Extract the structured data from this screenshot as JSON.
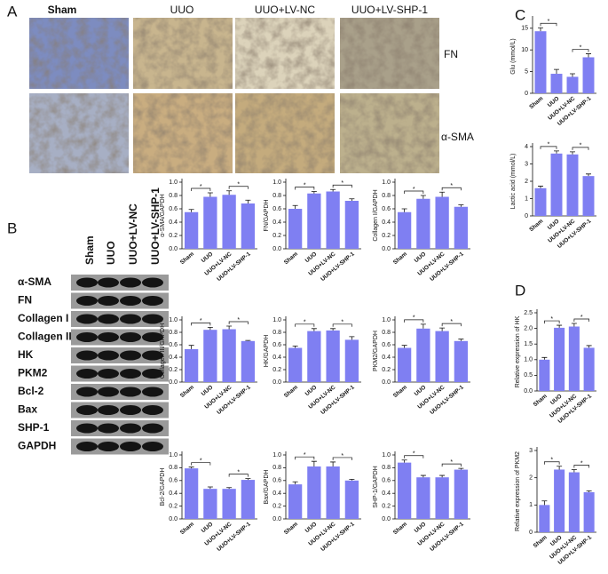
{
  "panel_labels": [
    "A",
    "B",
    "C",
    "D"
  ],
  "panel_a": {
    "columns": [
      "Sham",
      "UUO",
      "UUO+LV-NC",
      "UUO+LV-SHP-1"
    ],
    "rows": [
      "FN",
      "α-SMA"
    ]
  },
  "panel_b": {
    "lanes": [
      "Sham",
      "UUO",
      "UUO+LV-NC",
      "UUO+LV-SHP-1"
    ],
    "proteins": [
      "α-SMA",
      "FN",
      "Collagen I",
      "Collagen III",
      "HK",
      "PKM2",
      "Bcl-2",
      "Bax",
      "SHP-1",
      "GAPDH"
    ]
  },
  "chart_data": [
    {
      "type": "bar",
      "ylabel": "α-SMA/GAPDH",
      "categories": [
        "Sham",
        "UUO",
        "UUO+LV-NC",
        "UUO+LV-SHP-1"
      ],
      "values": [
        0.55,
        0.78,
        0.81,
        0.68
      ],
      "errors": [
        0.04,
        0.06,
        0.06,
        0.05
      ],
      "significance": [
        "*",
        "*"
      ],
      "color": "#7f7ff2",
      "ylim": [
        0,
        1
      ],
      "yticks": [
        {
          "value": 0,
          "label": "0.0"
        },
        0.2,
        0.4,
        0.6,
        0.8,
        {
          "value": 1,
          "label": "1.0"
        }
      ]
    },
    {
      "type": "bar",
      "ylabel": "FN/GAPDH",
      "categories": [
        "Sham",
        "UUO",
        "UUO+LV-NC",
        "UUO+LV-SHP-1"
      ],
      "values": [
        0.6,
        0.83,
        0.86,
        0.72
      ],
      "errors": [
        0.05,
        0.03,
        0.03,
        0.03
      ],
      "significance": [
        "*",
        "*"
      ],
      "color": "#7f7ff2",
      "ylim": [
        0,
        1
      ],
      "yticks": [
        {
          "value": 0,
          "label": "0.0"
        },
        0.2,
        0.4,
        0.6,
        0.8,
        {
          "value": 1,
          "label": "1.0"
        }
      ]
    },
    {
      "type": "bar",
      "ylabel": "Collagen I/GAPDH",
      "categories": [
        "Sham",
        "UUO",
        "UUO+LV-NC",
        "UUO+LV-SHP-1"
      ],
      "values": [
        0.55,
        0.75,
        0.78,
        0.63
      ],
      "errors": [
        0.05,
        0.05,
        0.07,
        0.03
      ],
      "significance": [
        "*",
        "*"
      ],
      "color": "#7f7ff2",
      "ylim": [
        0,
        1
      ],
      "yticks": [
        {
          "value": 0,
          "label": "0.0"
        },
        0.2,
        0.4,
        0.6,
        0.8,
        {
          "value": 1,
          "label": "1.0"
        }
      ]
    },
    {
      "type": "bar",
      "ylabel": "Collagen III/GAPDH",
      "categories": [
        "Sham",
        "UUO",
        "UUO+LV-NC",
        "UUO+LV-SHP-1"
      ],
      "values": [
        0.53,
        0.84,
        0.85,
        0.66
      ],
      "errors": [
        0.06,
        0.04,
        0.05,
        0.01
      ],
      "significance": [
        "*",
        "*"
      ],
      "color": "#7f7ff2",
      "ylim": [
        0,
        1
      ],
      "yticks": [
        {
          "value": 0,
          "label": "0.0"
        },
        0.2,
        0.4,
        0.6,
        0.8,
        {
          "value": 1,
          "label": "1.0"
        }
      ]
    },
    {
      "type": "bar",
      "ylabel": "HK/GAPDH",
      "categories": [
        "Sham",
        "UUO",
        "UUO+LV-NC",
        "UUO+LV-SHP-1"
      ],
      "values": [
        0.55,
        0.82,
        0.83,
        0.68
      ],
      "errors": [
        0.03,
        0.04,
        0.03,
        0.05
      ],
      "significance": [
        "*",
        "*"
      ],
      "color": "#7f7ff2",
      "ylim": [
        0,
        1
      ],
      "yticks": [
        {
          "value": 0,
          "label": "0.0"
        },
        0.2,
        0.4,
        0.6,
        0.8,
        {
          "value": 1,
          "label": "1.0"
        }
      ]
    },
    {
      "type": "bar",
      "ylabel": "PKM2/GAPDH",
      "categories": [
        "Sham",
        "UUO",
        "UUO+LV-NC",
        "UUO+LV-SHP-1"
      ],
      "values": [
        0.55,
        0.86,
        0.82,
        0.66
      ],
      "errors": [
        0.04,
        0.07,
        0.05,
        0.03
      ],
      "significance": [
        "*",
        "*"
      ],
      "color": "#7f7ff2",
      "ylim": [
        0,
        1
      ],
      "yticks": [
        {
          "value": 0,
          "label": "0.0"
        },
        0.2,
        0.4,
        0.6,
        0.8,
        {
          "value": 1,
          "label": "1.0"
        }
      ]
    },
    {
      "type": "bar",
      "ylabel": "Bcl-2/GAPDH",
      "categories": [
        "Sham",
        "UUO",
        "UUO+LV-NC",
        "UUO+LV-SHP-1"
      ],
      "values": [
        0.79,
        0.47,
        0.47,
        0.61
      ],
      "errors": [
        0.02,
        0.03,
        0.02,
        0.02
      ],
      "significance": [
        "*",
        "*"
      ],
      "color": "#7f7ff2",
      "ylim": [
        0,
        1
      ],
      "yticks": [
        {
          "value": 0,
          "label": "0.0"
        },
        0.2,
        0.4,
        0.6,
        0.8,
        {
          "value": 1,
          "label": "1.0"
        }
      ]
    },
    {
      "type": "bar",
      "ylabel": "Bax/GAPDH",
      "categories": [
        "Sham",
        "UUO",
        "UUO+LV-NC",
        "UUO+LV-SHP-1"
      ],
      "values": [
        0.54,
        0.82,
        0.82,
        0.6
      ],
      "errors": [
        0.04,
        0.08,
        0.07,
        0.02
      ],
      "significance": [
        "*",
        "*"
      ],
      "color": "#7f7ff2",
      "ylim": [
        0,
        1
      ],
      "yticks": [
        {
          "value": 0,
          "label": "0.0"
        },
        0.2,
        0.4,
        0.6,
        0.8,
        {
          "value": 1,
          "label": "1.0"
        }
      ]
    },
    {
      "type": "bar",
      "ylabel": "SHP-1/GAPDH",
      "categories": [
        "Sham",
        "UUO",
        "UUO+LV-NC",
        "UUO+LV-SHP-1"
      ],
      "values": [
        0.88,
        0.65,
        0.65,
        0.77
      ],
      "errors": [
        0.04,
        0.03,
        0.03,
        0.02
      ],
      "significance": [
        "*",
        "*"
      ],
      "color": "#7f7ff2",
      "ylim": [
        0,
        1
      ],
      "yticks": [
        {
          "value": 0,
          "label": "0.0"
        },
        0.2,
        0.4,
        0.6,
        0.8,
        {
          "value": 1,
          "label": "1.0"
        }
      ]
    },
    {
      "type": "bar",
      "ylabel": "Glu (mmol/L)",
      "categories": [
        "Sham",
        "UUO",
        "UUO+LV-NC",
        "UUO+LV-SHP-1"
      ],
      "values": [
        14.3,
        4.5,
        3.8,
        8.3
      ],
      "errors": [
        0.8,
        1,
        0.7,
        0.8
      ],
      "significance": [
        "*",
        "*"
      ],
      "color": "#7f7ff2",
      "ylim": [
        0,
        17
      ],
      "yticks": [
        0,
        5,
        10,
        15
      ]
    },
    {
      "type": "bar",
      "ylabel": "Lactic acid (mmol/L)",
      "categories": [
        "Sham",
        "UUO",
        "UUO+LV-NC",
        "UUO+LV-SHP-1"
      ],
      "values": [
        1.6,
        3.6,
        3.55,
        2.3
      ],
      "errors": [
        0.12,
        0.15,
        0.15,
        0.12
      ],
      "significance": [
        "*",
        "*"
      ],
      "color": "#7f7ff2",
      "ylim": [
        0,
        4
      ],
      "yticks": [
        0,
        1,
        2,
        3,
        4
      ]
    },
    {
      "type": "bar",
      "ylabel": "Relative expression of HK",
      "categories": [
        "Sham",
        "UUO",
        "UUO+LV-NC",
        "UUO+LV-SHP-1"
      ],
      "values": [
        1,
        2.02,
        2.06,
        1.38
      ],
      "errors": [
        0.07,
        0.08,
        0.1,
        0.07
      ],
      "significance": [
        "*",
        "*"
      ],
      "color": "#7f7ff2",
      "ylim": [
        0,
        2.5
      ],
      "yticks": [
        {
          "value": 0,
          "label": "0.0"
        },
        0.5,
        {
          "value": 1,
          "label": "1.0"
        },
        1.5,
        {
          "value": 2,
          "label": "2.0"
        },
        2.5
      ]
    },
    {
      "type": "bar",
      "ylabel": "Relative expression of PKM2",
      "categories": [
        "Sham",
        "UUO",
        "UUO+LV-NC",
        "UUO+LV-SHP-1"
      ],
      "values": [
        1,
        2.3,
        2.2,
        1.47
      ],
      "errors": [
        0.15,
        0.12,
        0.1,
        0.05
      ],
      "significance": [
        "*",
        "*"
      ],
      "color": "#7f7ff2",
      "ylim": [
        0,
        3
      ],
      "yticks": [
        0,
        1,
        2,
        3
      ]
    }
  ]
}
